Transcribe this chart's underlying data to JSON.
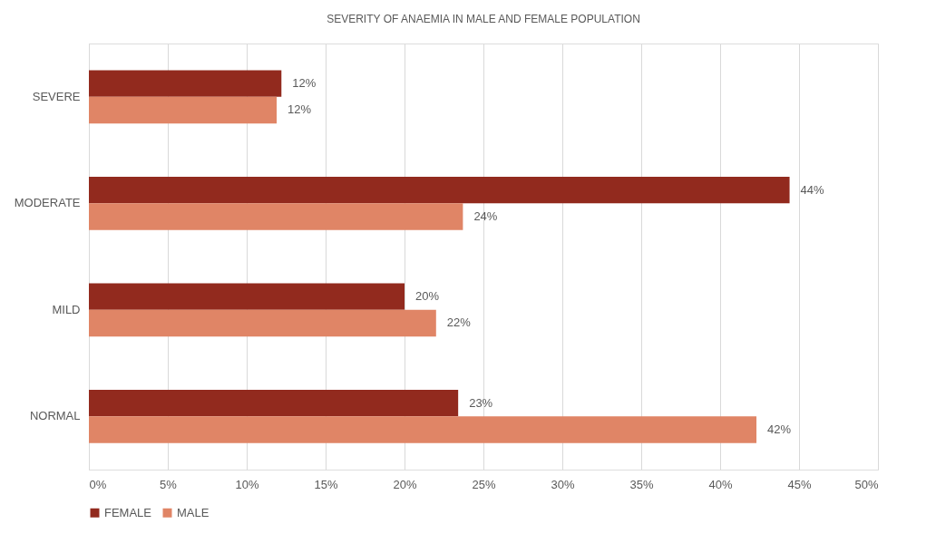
{
  "chart_data": {
    "type": "bar",
    "orientation": "horizontal",
    "title": "SEVERITY OF ANAEMIA IN MALE AND FEMALE POPULATION",
    "categories": [
      "SEVERE",
      "MODERATE",
      "MILD",
      "NORMAL"
    ],
    "series": [
      {
        "name": "FEMALE",
        "color": "#922a1e",
        "values": [
          12.2,
          44.4,
          20.0,
          23.4
        ],
        "value_labels": [
          "12%",
          "44%",
          "20%",
          "23%"
        ]
      },
      {
        "name": "MALE",
        "color": "#e08566",
        "values": [
          11.9,
          23.7,
          22.0,
          42.3
        ],
        "value_labels": [
          "12%",
          "24%",
          "22%",
          "42%"
        ]
      }
    ],
    "xlim": [
      0,
      50
    ],
    "xticks": [
      {
        "value": 0,
        "label": "0%"
      },
      {
        "value": 5,
        "label": "5%"
      },
      {
        "value": 10,
        "label": "10%"
      },
      {
        "value": 15,
        "label": "15%"
      },
      {
        "value": 20,
        "label": "20%"
      },
      {
        "value": 25,
        "label": "25%"
      },
      {
        "value": 30,
        "label": "30%"
      },
      {
        "value": 35,
        "label": "35%"
      },
      {
        "value": 40,
        "label": "40%"
      },
      {
        "value": 45,
        "label": "45%"
      },
      {
        "value": 50,
        "label": "50%"
      }
    ],
    "grid": "x",
    "legend": "bottom"
  }
}
